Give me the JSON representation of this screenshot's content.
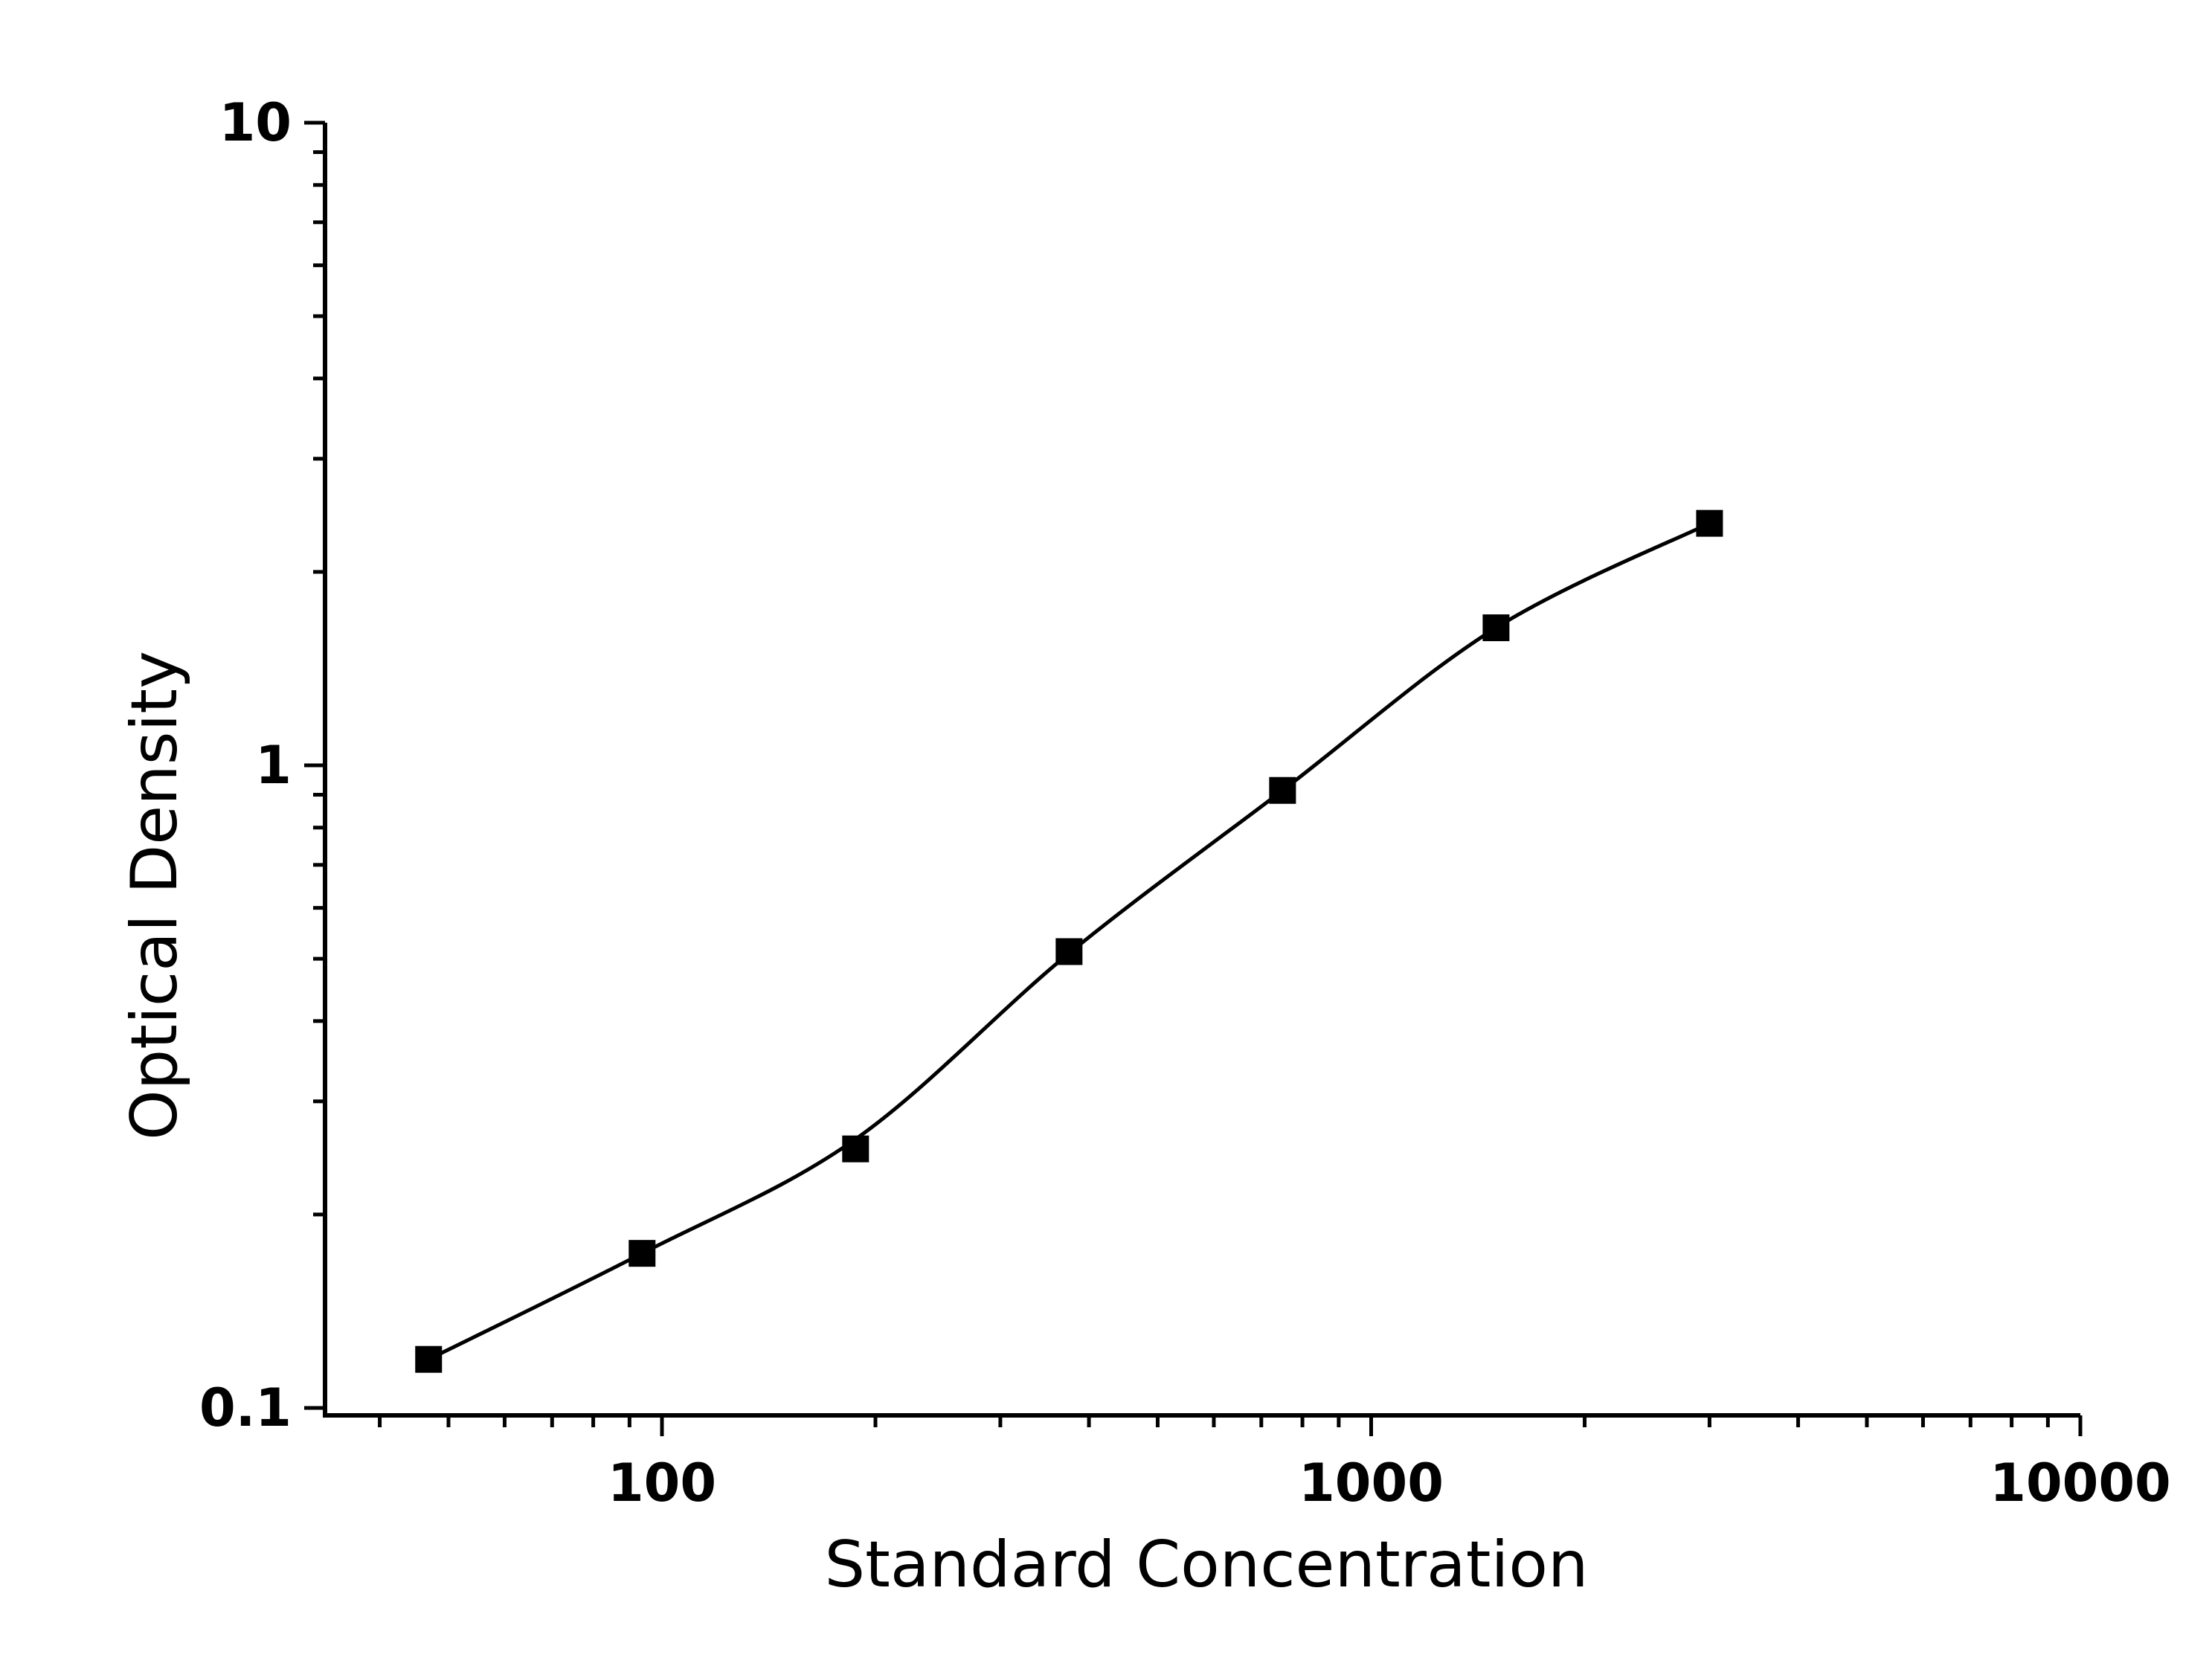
{
  "chart_data": {
    "type": "scatter",
    "xlabel": "Standard Concentration",
    "ylabel": "Optical Density",
    "x_scale": "log",
    "y_scale": "log",
    "xlim": [
      31.25,
      10000
    ],
    "ylim": [
      0.1,
      10
    ],
    "x_ticks": [
      "100",
      "1000",
      "10000"
    ],
    "y_ticks": [
      "0.1",
      "1",
      "10"
    ],
    "grid": false,
    "legend": "none",
    "marker_color": "#000000",
    "series": [
      {
        "marker": "square",
        "x": [
          46.875,
          93.75,
          187.5,
          375,
          750,
          1500,
          3000
        ],
        "y": [
          0.119,
          0.174,
          0.253,
          0.513,
          0.914,
          1.637,
          2.38
        ]
      }
    ],
    "fit_curve": {
      "style": "smooth line through points",
      "x": [
        46.875,
        93.75,
        187.5,
        375,
        750,
        1500,
        3000
      ],
      "y": [
        0.119,
        0.174,
        0.262,
        0.51,
        0.914,
        1.637,
        2.38
      ]
    }
  }
}
